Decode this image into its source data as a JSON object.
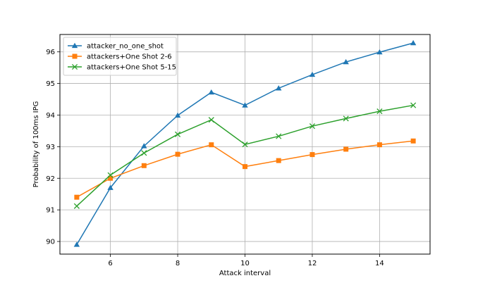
{
  "chart_data": {
    "type": "line",
    "title": "",
    "xlabel": "Attack interval",
    "ylabel": "Probability of 100ms IPG",
    "xlim": [
      4.5,
      15.5
    ],
    "ylim": [
      89.6,
      96.55
    ],
    "xticks": [
      6,
      8,
      10,
      12,
      14
    ],
    "yticks": [
      90,
      91,
      92,
      93,
      94,
      95,
      96
    ],
    "grid": true,
    "legend_position": "top-left",
    "x": [
      5,
      6,
      7,
      8,
      9,
      10,
      11,
      12,
      13,
      14,
      15
    ],
    "series": [
      {
        "name": "attacker_no_one_shot",
        "color": "#1f77b4",
        "marker": "triangle",
        "values": [
          89.9,
          91.7,
          93.02,
          93.99,
          94.72,
          94.31,
          94.85,
          95.28,
          95.68,
          95.99,
          96.28
        ]
      },
      {
        "name": "attackers+One Shot 2-6",
        "color": "#ff7f0e",
        "marker": "square",
        "values": [
          91.4,
          92.0,
          92.4,
          92.76,
          93.06,
          92.37,
          92.56,
          92.75,
          92.92,
          93.06,
          93.18
        ]
      },
      {
        "name": "attackers+One Shot 5-15",
        "color": "#2ca02c",
        "marker": "x",
        "values": [
          91.12,
          92.1,
          92.8,
          93.39,
          93.85,
          93.07,
          93.33,
          93.65,
          93.89,
          94.12,
          94.31
        ]
      }
    ]
  }
}
